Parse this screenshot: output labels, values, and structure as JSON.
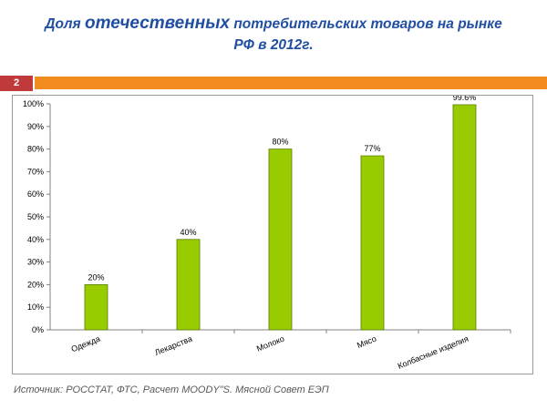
{
  "slide": {
    "title_lead": "Доля",
    "title_emph": "отечественных",
    "title_rest": "потребительских товаров на рынке",
    "title_line2": "РФ в 2012г.",
    "number": "2",
    "source": "Источник: РОССТАТ, ФТС, Расчет MOODY\"S. Мясной Совет ЕЭП",
    "bar_color": "#99cc00",
    "accent_color": "#f28c1e"
  },
  "chart_data": {
    "type": "bar",
    "categories": [
      "Одежда",
      "Лекарства",
      "Молоко",
      "Мясо",
      "Колбасные изделия"
    ],
    "values": [
      20,
      40,
      80,
      77,
      99.6
    ],
    "data_labels": [
      "20%",
      "40%",
      "80%",
      "77%",
      "99.6%"
    ],
    "ylim": [
      0,
      100
    ],
    "yticks": [
      "0%",
      "10%",
      "20%",
      "30%",
      "40%",
      "50%",
      "60%",
      "70%",
      "80%",
      "90%",
      "100%"
    ],
    "grid": false,
    "legend": "none"
  }
}
